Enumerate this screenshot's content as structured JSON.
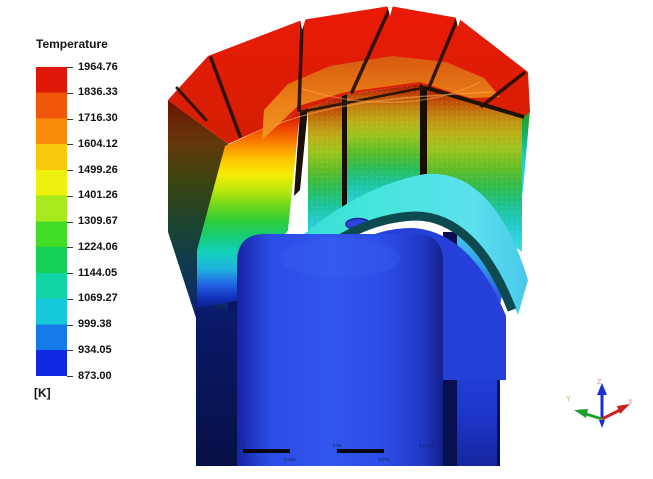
{
  "app": {
    "background": "#ffffff"
  },
  "legend": {
    "title": "Temperature",
    "unit_label": "[K]",
    "tick_labels": [
      "1964.76",
      "1836.33",
      "1716.30",
      "1604.12",
      "1499.26",
      "1401.26",
      "1309.67",
      "1224.06",
      "1144.05",
      "1069.27",
      "999.38",
      "934.05",
      "873.00"
    ],
    "band_colors": [
      "#e0180a",
      "#f0570a",
      "#fa8c0a",
      "#f8c80a",
      "#eef00e",
      "#a8ea1e",
      "#42dc28",
      "#16d158",
      "#12d5a4",
      "#16c9d8",
      "#1579e8",
      "#1026e0"
    ]
  },
  "scale_ruler": {
    "zero_label": "0",
    "mid_label": "0.05",
    "end_label": "0.1 (m)",
    "q1_label": "0.025",
    "q3_label": "0.075"
  },
  "triad": {
    "x_label": "X",
    "y_label": "Y",
    "z_label": "Z",
    "x_color": "#cc2020",
    "y_color": "#1f9e2e",
    "z_color": "#1b2fd4"
  },
  "chart_data": {
    "type": "heatmap",
    "title": "Temperature",
    "unit": "K",
    "colorbar_ticks": [
      1964.76,
      1836.33,
      1716.3,
      1604.12,
      1499.26,
      1401.26,
      1309.67,
      1224.06,
      1144.05,
      1069.27,
      999.38,
      934.05,
      873.0
    ],
    "range": [
      873.0,
      1964.76
    ],
    "colormap": "rainbow",
    "legend_position": "top-left",
    "scene": "3D cut-away temperature contour: hot red upper block ring (~1965 K) over cool blue dome-top cylinder (~873 K)"
  }
}
